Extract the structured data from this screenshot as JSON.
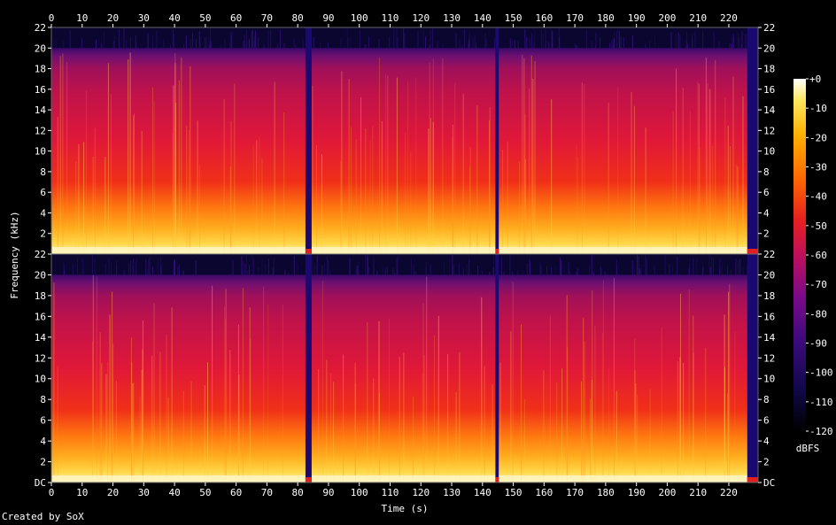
{
  "chart_data": {
    "type": "heatmap",
    "xlabel": "Time (s)",
    "ylabel": "Frequency (kHz)",
    "x_ticks": [
      0,
      10,
      20,
      30,
      40,
      50,
      60,
      70,
      80,
      90,
      100,
      110,
      120,
      130,
      140,
      150,
      160,
      170,
      180,
      190,
      200,
      210,
      220
    ],
    "xlim": [
      0,
      229.5
    ],
    "y_ticks": [
      "DC",
      "2",
      "4",
      "6",
      "8",
      "10",
      "12",
      "14",
      "16",
      "18",
      "20",
      "22"
    ],
    "ylim": [
      0,
      22
    ],
    "channels": 2,
    "content_cutoff_khz": 20,
    "silent_gaps_s": [
      [
        82.5,
        84.5
      ],
      [
        144.2,
        145.3
      ],
      [
        226,
        229.5
      ]
    ],
    "colorbar": {
      "label": "dBFS",
      "ticks": [
        "+0",
        "-10",
        "-20",
        "-30",
        "-40",
        "-50",
        "-60",
        "-70",
        "-80",
        "-90",
        "-100",
        "-110",
        "-120"
      ],
      "range": [
        -120,
        0
      ]
    }
  },
  "credit": "Created by SoX"
}
